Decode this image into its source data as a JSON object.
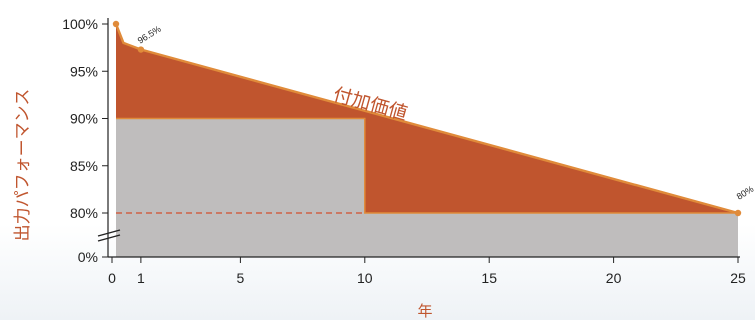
{
  "colors": {
    "value_area": "#c0552e",
    "guarantee_area": "#bfbdbd",
    "line": "#e08b3a",
    "axis": "#222222",
    "label": "#c0552e"
  },
  "chart_data": {
    "type": "area",
    "xlabel": "年",
    "ylabel": "出力パフォーマンス",
    "x_ticks": [
      "0",
      "1",
      "5",
      "10",
      "15",
      "20",
      "25"
    ],
    "y_ticks": [
      "0%",
      "80%",
      "85%",
      "90%",
      "95%",
      "100%"
    ],
    "xlim": [
      0,
      25
    ],
    "ylim_broken": [
      80,
      100
    ],
    "axis_break": true,
    "grid": false,
    "legend": "none",
    "series": [
      {
        "kind": "performance_warranty_line",
        "x": [
          0,
          0.3,
          1,
          25
        ],
        "y": [
          100,
          98,
          97.3,
          80
        ]
      },
      {
        "kind": "step_guarantee",
        "x": [
          0,
          10,
          10,
          25
        ],
        "y": [
          90,
          90,
          80,
          80
        ]
      }
    ],
    "annotations": [
      {
        "text": "付加価値"
      },
      {
        "text": "96.5%"
      },
      {
        "text": "80%"
      }
    ]
  }
}
